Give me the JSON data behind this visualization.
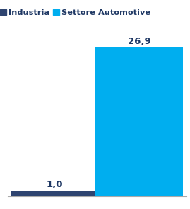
{
  "categories": [
    "Industria",
    "Settore Automotive"
  ],
  "values": [
    1.0,
    26.9
  ],
  "bar_colors": [
    "#2E4470",
    "#00AEEF"
  ],
  "legend_labels": [
    "Industria",
    "Settore Automotive"
  ],
  "value_labels": [
    "1,0",
    "26,9"
  ],
  "value_color": "#1F3864",
  "ylim": [
    0,
    29.5
  ],
  "bar_width": 0.52,
  "background_color": "#ffffff",
  "label_fontsize": 9.5,
  "legend_fontsize": 8.2,
  "x_positions": [
    0.28,
    0.78
  ]
}
